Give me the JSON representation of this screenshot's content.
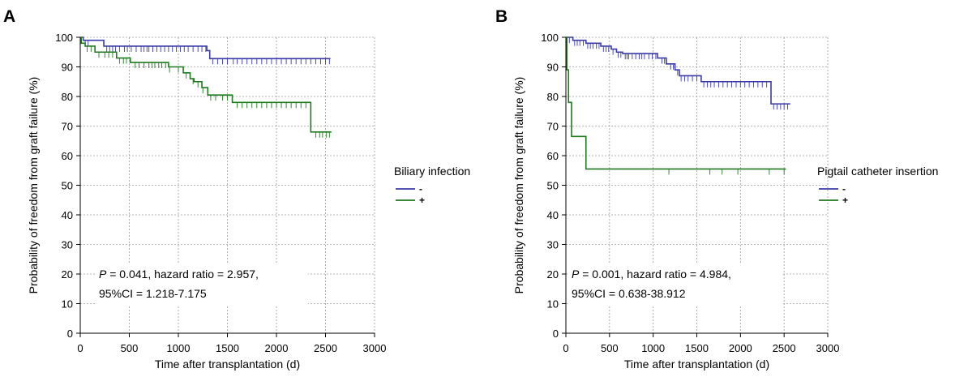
{
  "chart_data": [
    {
      "type": "line",
      "panel_label": "A",
      "xlabel": "Time after transplantation (d)",
      "ylabel": "Probability of freedom from graft failure (%)",
      "xlim": [
        0,
        3000
      ],
      "ylim": [
        0,
        100
      ],
      "xticks": [
        "0",
        "500",
        "1000",
        "1500",
        "2000",
        "2500",
        "3000"
      ],
      "yticks": [
        "0",
        "10",
        "20",
        "30",
        "40",
        "50",
        "60",
        "70",
        "80",
        "90",
        "100"
      ],
      "grid": true,
      "legend_title": "Biliary infection",
      "legend_position": "right",
      "annotation": {
        "line1_italic": "P",
        "line1_rest": " = 0.041, hazard ratio = 2.957,",
        "line2": "95%CI = 1.218-7.175"
      },
      "series": [
        {
          "name": "-",
          "color": "#3b3ba8",
          "steps": [
            [
              0,
              100
            ],
            [
              30,
              99
            ],
            [
              240,
              97
            ],
            [
              600,
              97
            ],
            [
              1290,
              95.5
            ],
            [
              1320,
              92.8
            ],
            [
              2550,
              92.8
            ]
          ],
          "censor": [
            50,
            80,
            270,
            300,
            330,
            360,
            400,
            450,
            480,
            520,
            570,
            620,
            650,
            680,
            700,
            740,
            780,
            820,
            860,
            900,
            940,
            980,
            1020,
            1060,
            1100,
            1150,
            1200,
            1240,
            1280,
            1350,
            1400,
            1450,
            1500,
            1560,
            1600,
            1650,
            1700,
            1750,
            1800,
            1850,
            1900,
            1950,
            2000,
            2050,
            2100,
            2150,
            2200,
            2250,
            2300,
            2350,
            2400,
            2450,
            2500,
            2540
          ]
        },
        {
          "name": "+",
          "color": "#1f7a1f",
          "steps": [
            [
              0,
              100
            ],
            [
              10,
              98
            ],
            [
              50,
              97
            ],
            [
              150,
              95
            ],
            [
              370,
              93
            ],
            [
              510,
              91.5
            ],
            [
              900,
              90
            ],
            [
              1050,
              88
            ],
            [
              1120,
              86
            ],
            [
              1160,
              85
            ],
            [
              1240,
              83
            ],
            [
              1300,
              80.5
            ],
            [
              1550,
              78
            ],
            [
              2350,
              68
            ],
            [
              2560,
              68
            ]
          ],
          "censor": [
            70,
            110,
            190,
            250,
            290,
            330,
            400,
            440,
            470,
            560,
            600,
            650,
            700,
            730,
            760,
            800,
            830,
            870,
            910,
            1000,
            1080,
            1150,
            1200,
            1250,
            1330,
            1380,
            1450,
            1500,
            1600,
            1650,
            1700,
            1750,
            1800,
            1850,
            1900,
            1950,
            2000,
            2050,
            2100,
            2150,
            2200,
            2250,
            2300,
            2400,
            2440,
            2470,
            2510,
            2540
          ]
        }
      ]
    },
    {
      "type": "line",
      "panel_label": "B",
      "xlabel": "Time after transplantation (d)",
      "ylabel": "Probability of freedom from graft failure (%)",
      "xlim": [
        0,
        3000
      ],
      "ylim": [
        0,
        100
      ],
      "xticks": [
        "0",
        "500",
        "1000",
        "1500",
        "2000",
        "2500",
        "3000"
      ],
      "yticks": [
        "0",
        "10",
        "20",
        "30",
        "40",
        "50",
        "60",
        "70",
        "80",
        "90",
        "100"
      ],
      "grid": true,
      "legend_title": "Pigtail catheter insertion",
      "legend_position": "right",
      "annotation": {
        "line1_italic": "P",
        "line1_rest": " = 0.001, hazard ratio = 4.984,",
        "line2": "95%CI = 0.638-38.912"
      },
      "series": [
        {
          "name": "-",
          "color": "#3b3ba8",
          "steps": [
            [
              0,
              100
            ],
            [
              80,
              99
            ],
            [
              230,
              98
            ],
            [
              400,
              97
            ],
            [
              520,
              96
            ],
            [
              580,
              95
            ],
            [
              650,
              94.5
            ],
            [
              1050,
              93
            ],
            [
              1150,
              91
            ],
            [
              1250,
              89
            ],
            [
              1300,
              87
            ],
            [
              1550,
              85
            ],
            [
              2350,
              77.5
            ],
            [
              2570,
              77.5
            ]
          ],
          "censor": [
            40,
            100,
            130,
            160,
            200,
            250,
            280,
            310,
            350,
            380,
            430,
            460,
            490,
            540,
            600,
            630,
            680,
            700,
            720,
            760,
            800,
            840,
            870,
            900,
            950,
            990,
            1030,
            1100,
            1130,
            1200,
            1230,
            1280,
            1320,
            1360,
            1400,
            1450,
            1500,
            1580,
            1620,
            1660,
            1700,
            1750,
            1800,
            1850,
            1900,
            1950,
            2000,
            2050,
            2100,
            2150,
            2200,
            2250,
            2300,
            2380,
            2420,
            2460,
            2500,
            2540
          ]
        },
        {
          "name": "+",
          "color": "#1f7a1f",
          "steps": [
            [
              0,
              100
            ],
            [
              12,
              89
            ],
            [
              30,
              78
            ],
            [
              65,
              66.5
            ],
            [
              230,
              55.5
            ],
            [
              2520,
              55.5
            ]
          ],
          "censor": [
            1180,
            1650,
            1790,
            1970,
            2330,
            2500
          ]
        }
      ]
    }
  ]
}
